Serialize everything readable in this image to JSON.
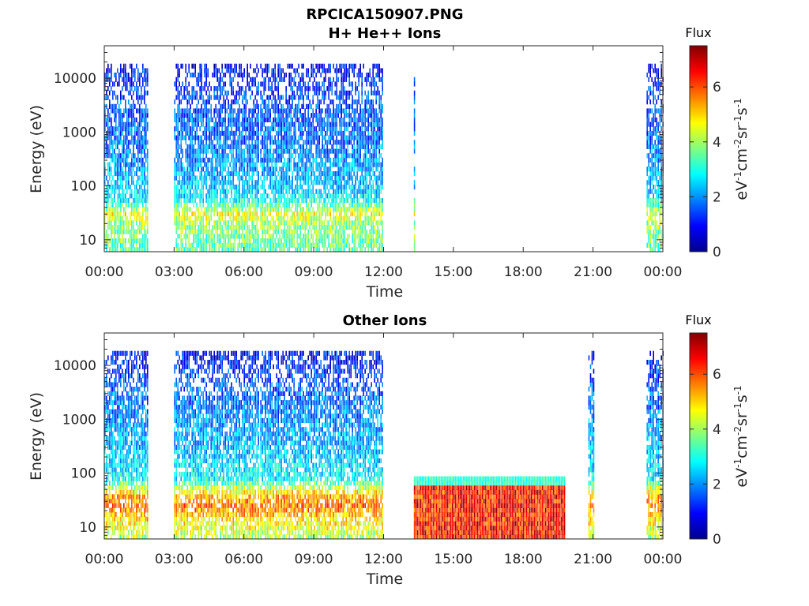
{
  "figure": {
    "title": "RPCICA150907.PNG"
  },
  "chart_data": [
    {
      "type": "heatmap",
      "title": "H+ He++ Ions",
      "xlabel": "Time",
      "ylabel": "Energy (eV)",
      "xlim": [
        "00:00",
        "24:00"
      ],
      "x_ticks": [
        "00:00",
        "03:00",
        "06:00",
        "09:00",
        "12:00",
        "15:00",
        "18:00",
        "21:00",
        "00:00"
      ],
      "yscale": "log",
      "ylim": [
        6,
        40000
      ],
      "y_ticks": [
        "10",
        "100",
        "1000",
        "10000"
      ],
      "colorbar": {
        "title": "Flux",
        "label": "eV-1cm-2sr-1s-1",
        "range": [
          0,
          7.5
        ],
        "ticks": [
          "0",
          "2",
          "4",
          "6"
        ],
        "colormap": "jet"
      },
      "coverage_hours": [
        [
          0.0,
          1.9
        ],
        [
          3.0,
          6.6
        ],
        [
          6.7,
          11.95
        ],
        [
          13.3,
          13.35
        ],
        [
          23.3,
          24.0
        ]
      ],
      "profile": [
        {
          "energy_eV": 6,
          "flux": 3.4
        },
        {
          "energy_eV": 20,
          "flux": 3.9
        },
        {
          "energy_eV": 30,
          "flux": 4.6
        },
        {
          "energy_eV": 60,
          "flux": 2.6
        },
        {
          "energy_eV": 100,
          "flux": 2.4
        },
        {
          "energy_eV": 300,
          "flux": 2.0
        },
        {
          "energy_eV": 1000,
          "flux": 1.7
        },
        {
          "energy_eV": 5000,
          "flux": 1.4
        },
        {
          "energy_eV": 15000,
          "flux": 1.0
        },
        {
          "energy_eV": 25000,
          "flux": 0.7
        }
      ]
    },
    {
      "type": "heatmap",
      "title": "Other Ions",
      "xlabel": "Time",
      "ylabel": "Energy (eV)",
      "xlim": [
        "00:00",
        "24:00"
      ],
      "x_ticks": [
        "00:00",
        "03:00",
        "06:00",
        "09:00",
        "12:00",
        "15:00",
        "18:00",
        "21:00",
        "00:00"
      ],
      "yscale": "log",
      "ylim": [
        6,
        40000
      ],
      "y_ticks": [
        "10",
        "100",
        "1000",
        "10000"
      ],
      "colorbar": {
        "title": "Flux",
        "label": "eV-1cm-2sr-1s-1",
        "range": [
          0,
          7.5
        ],
        "ticks": [
          "0",
          "2",
          "4",
          "6"
        ],
        "colormap": "jet"
      },
      "coverage_hours": [
        [
          0.0,
          1.9
        ],
        [
          3.0,
          6.6
        ],
        [
          6.7,
          11.95
        ],
        [
          13.3,
          19.8
        ],
        [
          20.8,
          21.05
        ],
        [
          23.3,
          24.0
        ]
      ],
      "profile": [
        {
          "energy_eV": 6,
          "flux": 4.0
        },
        {
          "energy_eV": 15,
          "flux": 5.0
        },
        {
          "energy_eV": 25,
          "flux": 5.8
        },
        {
          "energy_eV": 40,
          "flux": 5.2
        },
        {
          "energy_eV": 80,
          "flux": 2.8
        },
        {
          "energy_eV": 300,
          "flux": 2.3
        },
        {
          "energy_eV": 1000,
          "flux": 2.0
        },
        {
          "energy_eV": 5000,
          "flux": 1.5
        },
        {
          "energy_eV": 15000,
          "flux": 1.0
        }
      ],
      "high_flux_interval_hours": [
        13.3,
        19.8
      ],
      "high_flux_interval_max_eV": 80
    }
  ]
}
